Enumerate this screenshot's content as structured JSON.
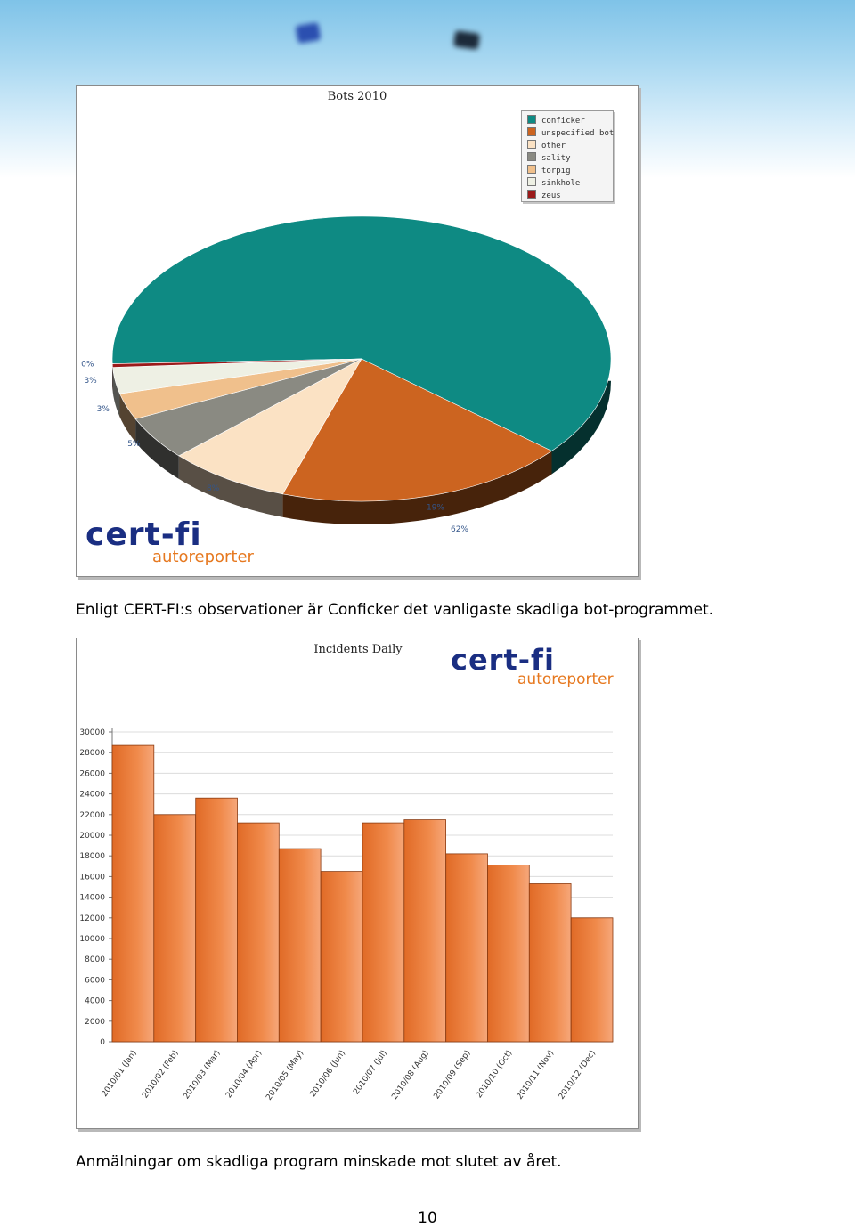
{
  "captions": {
    "pie": "Enligt CERT-FI:s observationer är Conficker det vanligaste skadliga bot-programmet.",
    "bar": "Anmälningar om skadliga program minskade mot slutet av året."
  },
  "page_number": "10",
  "logo": {
    "main": "cert-fi",
    "sub": "autoreporter"
  },
  "colors": {
    "bar_fill": "#f08a4b",
    "brand_blue": "#1a2e82",
    "brand_orange": "#e6781f"
  },
  "chart_data": [
    {
      "type": "pie",
      "title": "Bots 2010",
      "legend_position": "top-right",
      "series": [
        {
          "name": "conficker",
          "value": 62,
          "label": "62%",
          "color": "#0e8a83"
        },
        {
          "name": "unspecified bot",
          "value": 19,
          "label": "19%",
          "color": "#cc6420"
        },
        {
          "name": "other",
          "value": 8,
          "label": "8%",
          "color": "#fbe2c4"
        },
        {
          "name": "sality",
          "value": 5,
          "label": "5%",
          "color": "#8a8a82"
        },
        {
          "name": "torpig",
          "value": 3,
          "label": "3%",
          "color": "#f0c08c"
        },
        {
          "name": "sinkhole",
          "value": 3,
          "label": "3%",
          "color": "#eef0e4"
        },
        {
          "name": "zeus",
          "value": 0.4,
          "label": "0%",
          "color": "#9b1a1a"
        }
      ]
    },
    {
      "type": "bar",
      "title": "Incidents Daily",
      "grid": true,
      "ylim": [
        0,
        30000
      ],
      "yticks": [
        "0",
        "2000",
        "4000",
        "6000",
        "8000",
        "10000",
        "12000",
        "14000",
        "16000",
        "18000",
        "20000",
        "22000",
        "24000",
        "26000",
        "28000",
        "30000"
      ],
      "categories": [
        "2010/01 (Jan)",
        "2010/02 (Feb)",
        "2010/03 (Mar)",
        "2010/04 (Apr)",
        "2010/05 (May)",
        "2010/06 (Jun)",
        "2010/07 (Jul)",
        "2010/08 (Aug)",
        "2010/09 (Sep)",
        "2010/10 (Oct)",
        "2010/11 (Nov)",
        "2010/12 (Dec)"
      ],
      "values": [
        28700,
        22000,
        23600,
        21200,
        18700,
        16500,
        21200,
        21500,
        18200,
        17100,
        15300,
        12000
      ]
    }
  ]
}
